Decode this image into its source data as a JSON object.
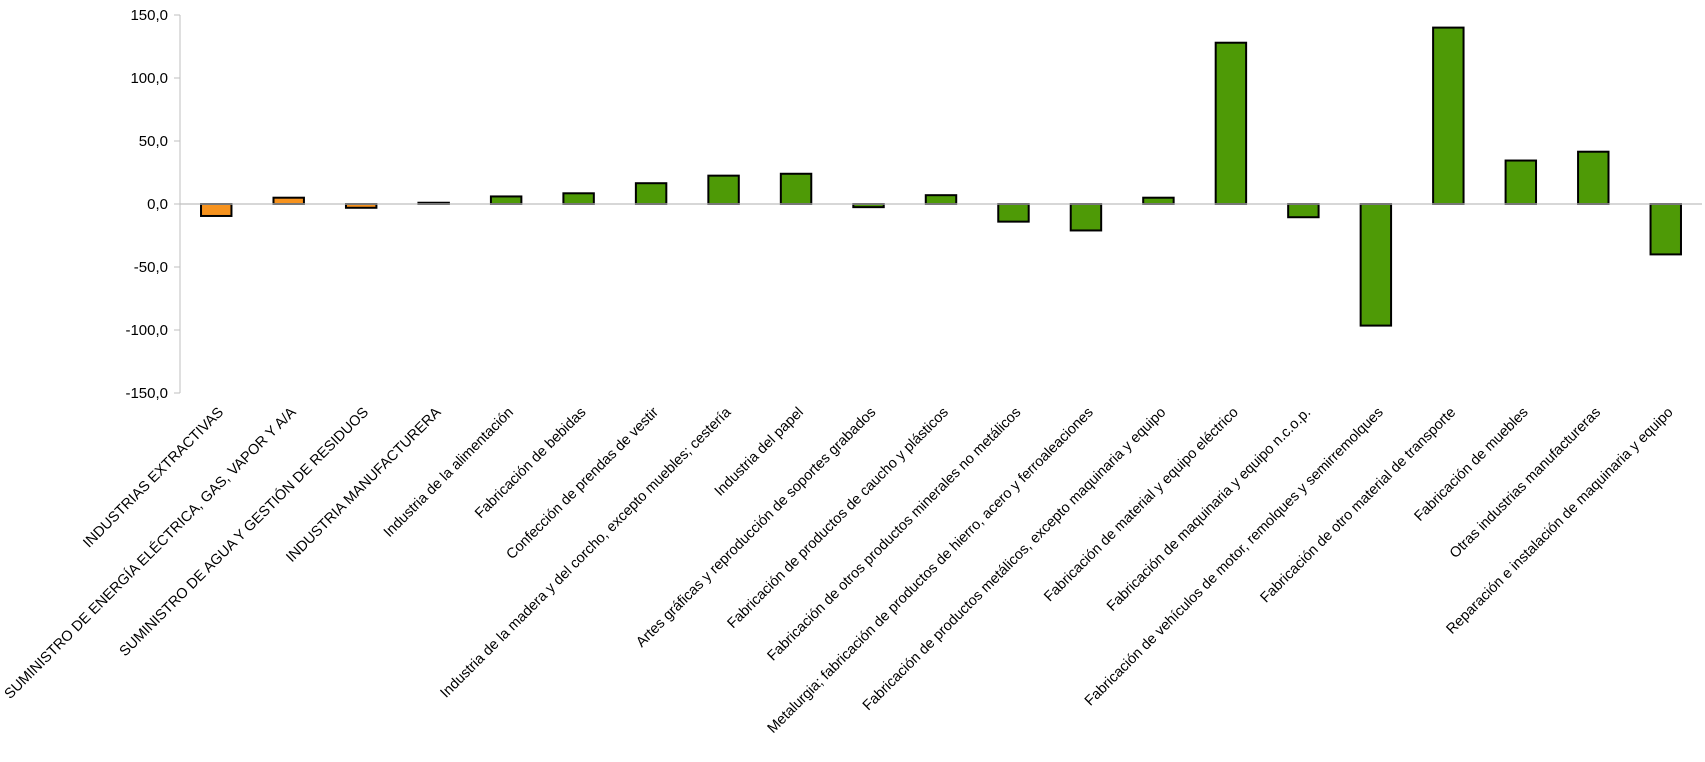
{
  "chart_data": {
    "type": "bar",
    "title": "",
    "xlabel": "",
    "ylabel": "",
    "ylim": [
      -150,
      150
    ],
    "yticks": [
      150,
      100,
      50,
      0,
      -50,
      -100,
      -150
    ],
    "ytick_labels": [
      "150,0",
      "100,0",
      "50,0",
      "0,0",
      "-50,0",
      "-100,0",
      "-150,0"
    ],
    "grid": false,
    "legend": "none",
    "colors": {
      "orange": "#F7931E",
      "green": "#4E9A06",
      "outline": "#000000",
      "axis": "#BFBFBF"
    },
    "categories": [
      "INDUSTRIAS EXTRACTIVAS",
      "SUMINISTRO DE ENERGÍA ELÉCTRICA, GAS, VAPOR Y A/A",
      "SUMINISTRO DE AGUA Y GESTIÓN DE RESIDUOS",
      "INDUSTRIA MANUFACTURERA",
      "Industria de la alimentación",
      "Fabricación de bebidas",
      "Confección de prendas de vestir",
      "Industria de la madera y del corcho, excepto muebles; cestería",
      "Industria del papel",
      "Artes gráficas y reproducción de soportes grabados",
      "Fabricación de productos de caucho y plásticos",
      "Fabricación de otros productos minerales no metálicos",
      "Metalurgia; fabricación de productos de hierro, acero y ferroaleaciones",
      "Fabricación de productos metálicos, excepto maquinaria y equipo",
      "Fabricación de material y equipo eléctrico",
      "Fabricación de maquinaria y equipo n.c.o.p.",
      "Fabricación de vehículos de motor, remolques y semirremolques",
      "Fabricación de otro material de transporte",
      "Fabricación de muebles",
      "Otras industrias manufactureras",
      "Reparación e instalación de maquinaria y equipo"
    ],
    "values": [
      -9.5,
      5,
      -3,
      1,
      6,
      8.5,
      16.5,
      22.5,
      24,
      -2.5,
      7,
      -14,
      -21,
      5,
      128,
      -10.5,
      -96.5,
      140,
      34.5,
      41.5,
      -40
    ],
    "bar_colors": [
      "orange",
      "orange",
      "orange",
      "orange",
      "green",
      "green",
      "green",
      "green",
      "green",
      "green",
      "green",
      "green",
      "green",
      "green",
      "green",
      "green",
      "green",
      "green",
      "green",
      "green",
      "green"
    ]
  }
}
